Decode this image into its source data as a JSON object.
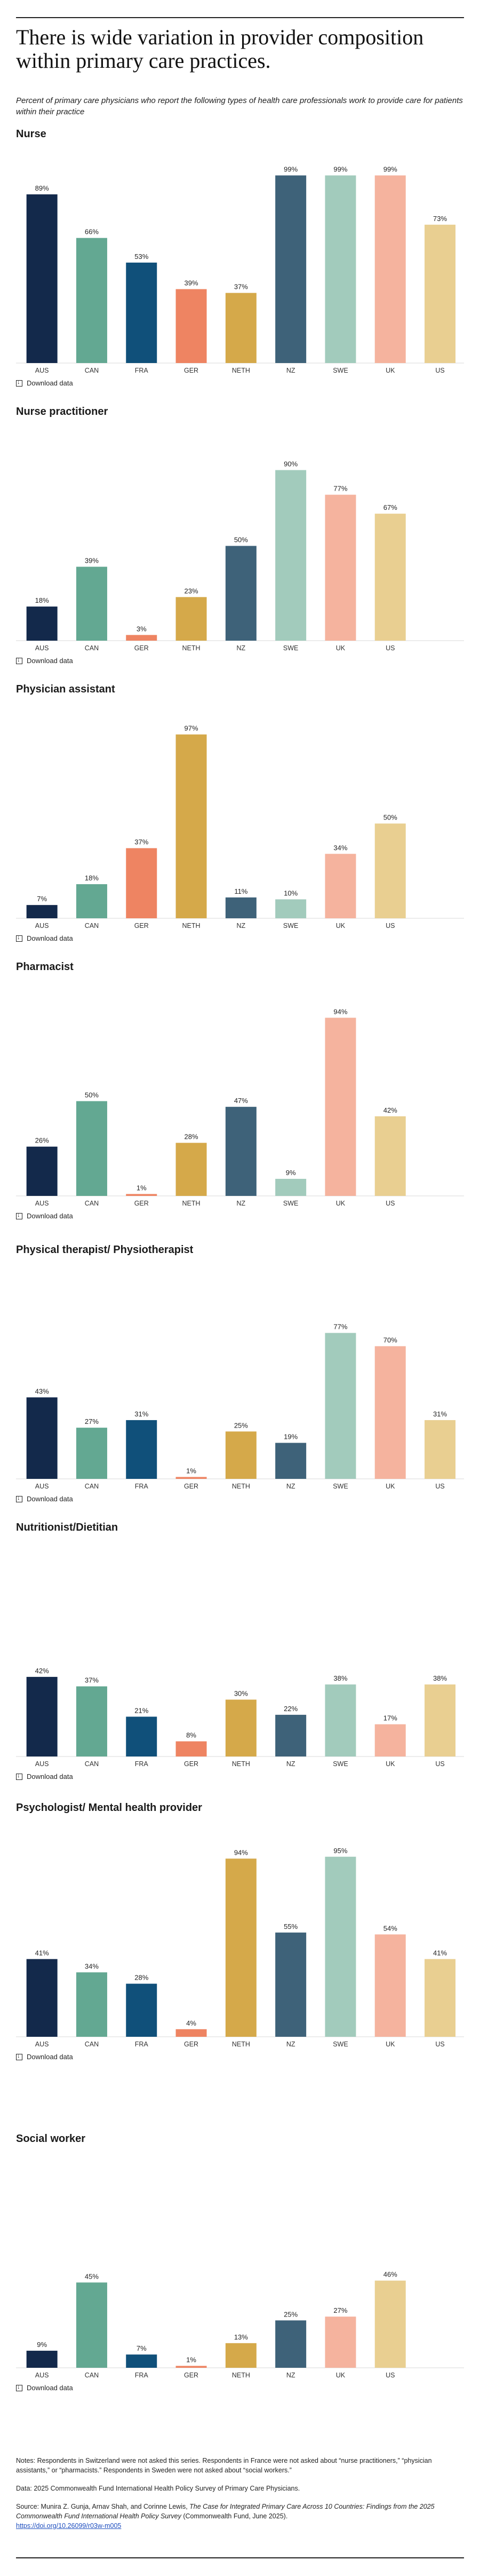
{
  "title": "There is wide variation in provider composition within primary care practices.",
  "subtitle": "Percent of primary care physicians who report the following types of health care professionals work to provide care for patients within their practice",
  "download_label": "Download data",
  "colors": {
    "AUS": "#13294b",
    "CAN": "#63a892",
    "FRA": "#10507a",
    "GER": "#ee8462",
    "NETH": "#d5a94a",
    "NZ": "#3e6279",
    "SWE": "#a2cbbc",
    "UK": "#f5b39e",
    "US": "#e9cf91"
  },
  "chart_data": [
    {
      "type": "bar",
      "title": "Nurse",
      "categories": [
        "AUS",
        "CAN",
        "FRA",
        "GER",
        "NETH",
        "NZ",
        "SWE",
        "UK",
        "US"
      ],
      "values": [
        89,
        66,
        53,
        39,
        37,
        99,
        99,
        99,
        73
      ],
      "labels": [
        "89%",
        "66%",
        "53%",
        "39%",
        "37%",
        "99%",
        "99%",
        "99%",
        "73%"
      ],
      "ylim": [
        0,
        100
      ]
    },
    {
      "type": "bar",
      "title": "Nurse practitioner",
      "categories": [
        "AUS",
        "CAN",
        "GER",
        "NETH",
        "NZ",
        "SWE",
        "UK",
        "US"
      ],
      "values": [
        18,
        39,
        3,
        23,
        50,
        90,
        77,
        67
      ],
      "labels": [
        "18%",
        "39%",
        "3%",
        "23%",
        "50%",
        "90%",
        "77%",
        "67%"
      ],
      "ylim": [
        0,
        100
      ]
    },
    {
      "type": "bar",
      "title": "Physician assistant",
      "categories": [
        "AUS",
        "CAN",
        "GER",
        "NETH",
        "NZ",
        "SWE",
        "UK",
        "US"
      ],
      "values": [
        7,
        18,
        37,
        97,
        11,
        10,
        34,
        50
      ],
      "labels": [
        "7%",
        "18%",
        "37%",
        "97%",
        "11%",
        "10%",
        "34%",
        "50%"
      ],
      "ylim": [
        0,
        100
      ]
    },
    {
      "type": "bar",
      "title": "Pharmacist",
      "categories": [
        "AUS",
        "CAN",
        "GER",
        "NETH",
        "NZ",
        "SWE",
        "UK",
        "US"
      ],
      "values": [
        26,
        50,
        1,
        28,
        47,
        9,
        94,
        42
      ],
      "labels": [
        "26%",
        "50%",
        "1%",
        "28%",
        "47%",
        "9%",
        "94%",
        "42%"
      ],
      "ylim": [
        0,
        100
      ]
    },
    {
      "type": "bar",
      "title": "Physical therapist/ Physiotherapist",
      "categories": [
        "AUS",
        "CAN",
        "FRA",
        "GER",
        "NETH",
        "NZ",
        "SWE",
        "UK",
        "US"
      ],
      "values": [
        43,
        27,
        31,
        1,
        25,
        19,
        77,
        70,
        31
      ],
      "labels": [
        "43%",
        "27%",
        "31%",
        "1%",
        "25%",
        "19%",
        "77%",
        "70%",
        "31%"
      ],
      "ylim": [
        0,
        100
      ]
    },
    {
      "type": "bar",
      "title": "Nutritionist/Dietitian",
      "categories": [
        "AUS",
        "CAN",
        "FRA",
        "GER",
        "NETH",
        "NZ",
        "SWE",
        "UK",
        "US"
      ],
      "values": [
        42,
        37,
        21,
        8,
        30,
        22,
        38,
        17,
        38
      ],
      "labels": [
        "42%",
        "37%",
        "21%",
        "8%",
        "30%",
        "22%",
        "38%",
        "17%",
        "38%"
      ],
      "ylim": [
        0,
        100
      ]
    },
    {
      "type": "bar",
      "title": "Psychologist/ Mental health provider",
      "categories": [
        "AUS",
        "CAN",
        "FRA",
        "GER",
        "NETH",
        "NZ",
        "SWE",
        "UK",
        "US"
      ],
      "values": [
        41,
        34,
        28,
        4,
        94,
        55,
        95,
        54,
        41
      ],
      "labels": [
        "41%",
        "34%",
        "28%",
        "4%",
        "94%",
        "55%",
        "95%",
        "54%",
        "41%"
      ],
      "ylim": [
        0,
        100
      ]
    },
    {
      "type": "bar",
      "title": "Social worker",
      "categories": [
        "AUS",
        "CAN",
        "FRA",
        "GER",
        "NETH",
        "NZ",
        "UK",
        "US"
      ],
      "values": [
        9,
        45,
        7,
        1,
        13,
        25,
        27,
        46
      ],
      "labels": [
        "9%",
        "45%",
        "7%",
        "1%",
        "13%",
        "25%",
        "27%",
        "46%"
      ],
      "ylim": [
        0,
        100
      ]
    }
  ],
  "notes": {
    "notes": "Notes: Respondents in Switzerland were not asked this series. Respondents in France were not asked about “nurse practitioners,” “physician assistants,” or “pharmacists.” Respondents in Sweden were not asked about “social workers.”",
    "data": "Data: 2025 Commonwealth Fund International Health Policy Survey of Primary Care Physicians.",
    "source_prefix": "Source: Munira Z. Gunja, Arnav Shah, and Corinne Lewis, ",
    "source_title": "The Case for Integrated Primary Care Across 10 Countries: Findings from the 2025 Commonwealth Fund International Health Policy Survey",
    "source_suffix": " (Commonwealth Fund, June 2025).",
    "source_link": "https://doi.org/10.26099/r03w-m005"
  }
}
